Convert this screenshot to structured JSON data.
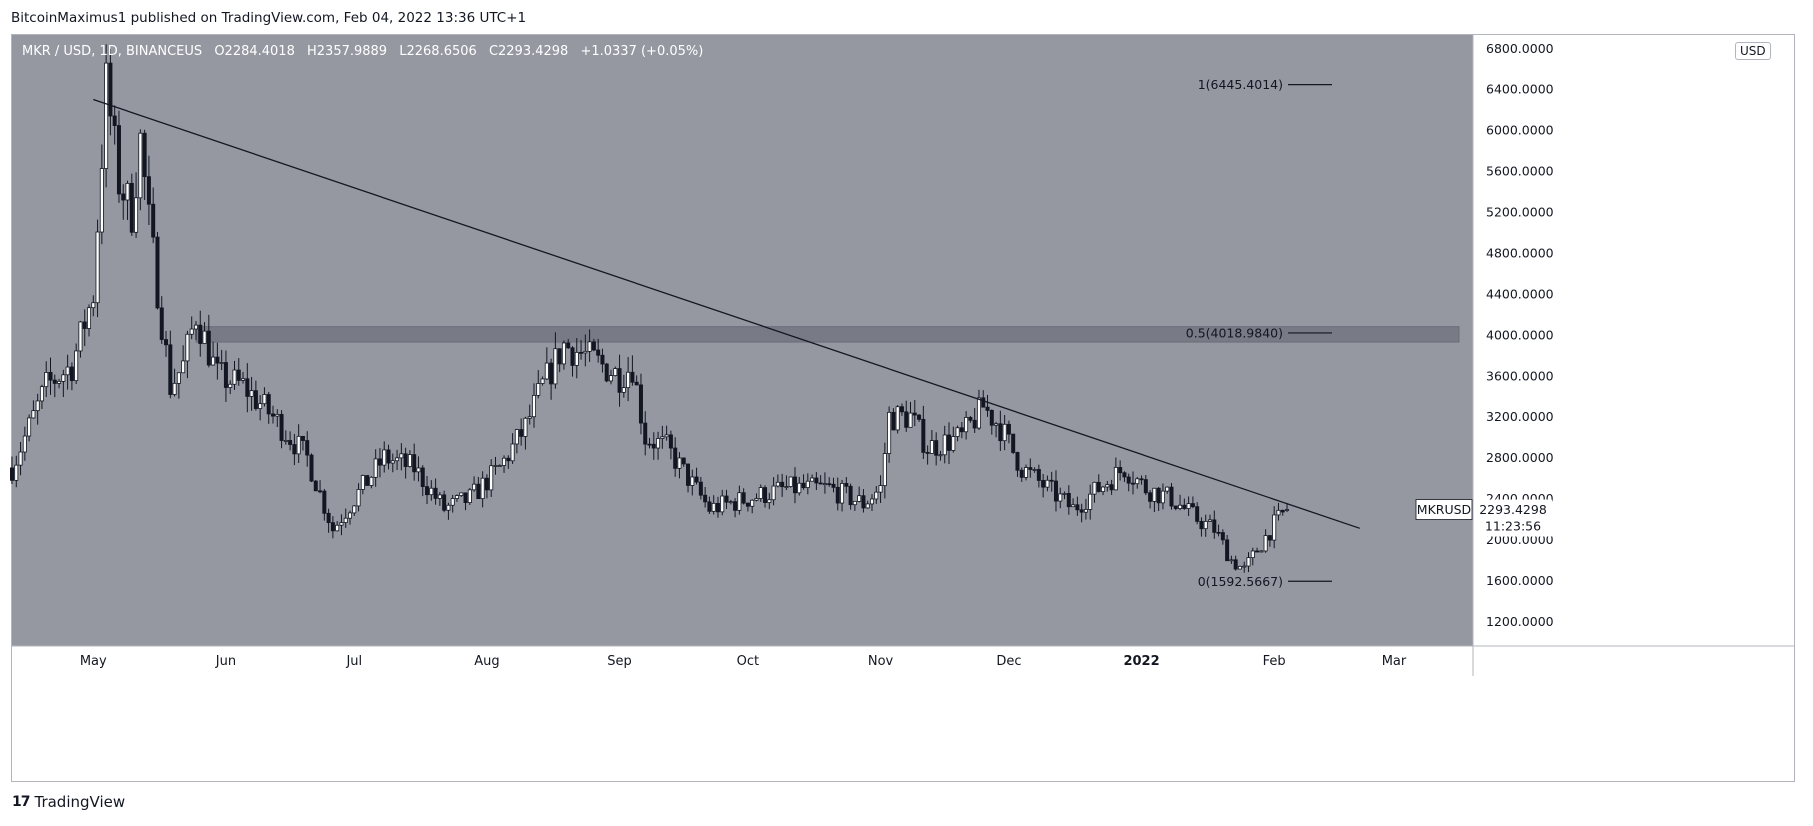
{
  "header": {
    "publisher": "BitcoinMaximus1 published on TradingView.com, Feb 04, 2022 13:36 UTC+1"
  },
  "legend": {
    "symbol": "MKR / USD, 1D, BINANCEUS",
    "open_label": "O",
    "open": "2284.4018",
    "high_label": "H",
    "high": "2357.9889",
    "low_label": "L",
    "low": "2268.6506",
    "close_label": "C",
    "close": "2293.4298",
    "change": "+1.0337 (+0.05%)"
  },
  "currency_badge": "USD",
  "price_label": {
    "ticker": "MKRUSD",
    "price": "2293.4298",
    "countdown": "11:23:56"
  },
  "footer": {
    "logo_mark": "17",
    "brand": "TradingView"
  },
  "colors": {
    "background": "#9598a1",
    "candle": "#131722",
    "resistance_zone": "#787b86",
    "trendline": "#131722"
  },
  "chart_data": {
    "type": "candlestick",
    "title": "MKR / USD, 1D, BINANCEUS",
    "x_ticks": [
      "May",
      "Jun",
      "Jul",
      "Aug",
      "Sep",
      "Oct",
      "Nov",
      "Dec",
      "2022",
      "Feb",
      "Mar"
    ],
    "y_ticks": [
      "1200.0000",
      "1600.0000",
      "2000.0000",
      "2400.0000",
      "2800.0000",
      "3200.0000",
      "3600.0000",
      "4000.0000",
      "4400.0000",
      "4800.0000",
      "5200.0000",
      "5600.0000",
      "6000.0000",
      "6400.0000",
      "6800.0000"
    ],
    "ylim": [
      960,
      6930
    ],
    "price_path": [
      [
        "2021-04-12",
        2700
      ],
      [
        "2021-04-20",
        3500
      ],
      [
        "2021-04-26",
        3700
      ],
      [
        "2021-05-01",
        4400
      ],
      [
        "2021-05-04",
        6445
      ],
      [
        "2021-05-07",
        5500
      ],
      [
        "2021-05-10",
        5200
      ],
      [
        "2021-05-12",
        5900
      ],
      [
        "2021-05-14",
        5100
      ],
      [
        "2021-05-19",
        3500
      ],
      [
        "2021-05-22",
        3700
      ],
      [
        "2021-05-25",
        4200
      ],
      [
        "2021-05-30",
        3600
      ],
      [
        "2021-06-05",
        3500
      ],
      [
        "2021-06-12",
        3200
      ],
      [
        "2021-06-20",
        2800
      ],
      [
        "2021-06-26",
        2100
      ],
      [
        "2021-07-01",
        2400
      ],
      [
        "2021-07-08",
        2800
      ],
      [
        "2021-07-15",
        2700
      ],
      [
        "2021-07-22",
        2300
      ],
      [
        "2021-07-28",
        2400
      ],
      [
        "2021-08-04",
        2700
      ],
      [
        "2021-08-10",
        3100
      ],
      [
        "2021-08-14",
        3500
      ],
      [
        "2021-08-19",
        3900
      ],
      [
        "2021-08-24",
        3800
      ],
      [
        "2021-09-01",
        3600
      ],
      [
        "2021-09-04",
        3700
      ],
      [
        "2021-09-07",
        3000
      ],
      [
        "2021-09-12",
        2900
      ],
      [
        "2021-09-17",
        2600
      ],
      [
        "2021-09-22",
        2300
      ],
      [
        "2021-10-01",
        2400
      ],
      [
        "2021-10-10",
        2500
      ],
      [
        "2021-10-20",
        2500
      ],
      [
        "2021-10-28",
        2350
      ],
      [
        "2021-11-01",
        2500
      ],
      [
        "2021-11-03",
        3200
      ],
      [
        "2021-11-08",
        3200
      ],
      [
        "2021-11-12",
        2900
      ],
      [
        "2021-11-20",
        3000
      ],
      [
        "2021-11-25",
        3300
      ],
      [
        "2021-11-29",
        3100
      ],
      [
        "2021-12-04",
        2700
      ],
      [
        "2021-12-10",
        2500
      ],
      [
        "2021-12-16",
        2300
      ],
      [
        "2021-12-22",
        2500
      ],
      [
        "2021-12-28",
        2700
      ],
      [
        "2022-01-02",
        2500
      ],
      [
        "2022-01-08",
        2400
      ],
      [
        "2022-01-14",
        2200
      ],
      [
        "2022-01-18",
        2100
      ],
      [
        "2022-01-22",
        1800
      ],
      [
        "2022-01-25",
        1700
      ],
      [
        "2022-01-28",
        1900
      ],
      [
        "2022-02-01",
        2150
      ],
      [
        "2022-02-04",
        2293
      ]
    ],
    "last_candle": {
      "open": 2284.4018,
      "high": 2357.9889,
      "low": 2268.6506,
      "close": 2293.4298
    },
    "trendline": {
      "start": [
        "2021-05-01",
        6300
      ],
      "end": [
        "2022-02-21",
        2110
      ]
    },
    "horizontal_zone": {
      "from": "2021-05-25",
      "y_low": 3930,
      "y_high": 4080
    },
    "fib_levels": [
      {
        "label": "1(6445.4014)",
        "value": 6445.4014
      },
      {
        "label": "0.5(4018.9840)",
        "value": 4018.984
      },
      {
        "label": "0(1592.5667)",
        "value": 1592.5667
      }
    ]
  }
}
